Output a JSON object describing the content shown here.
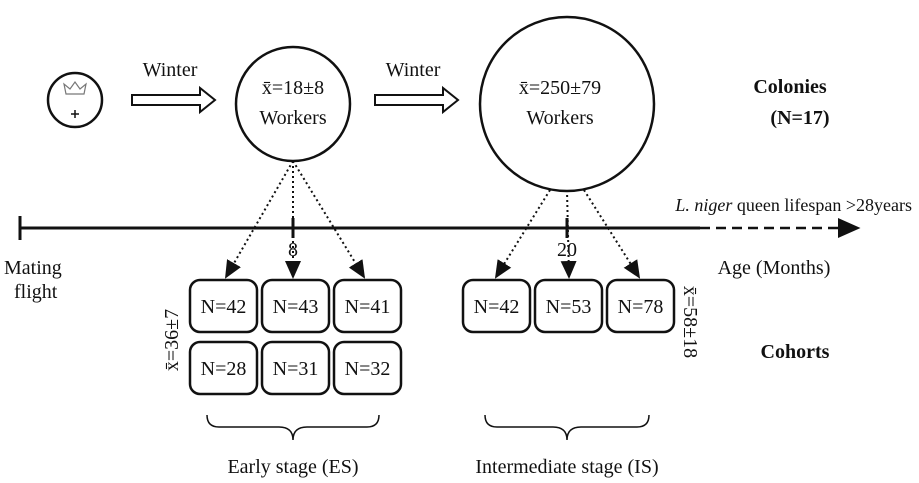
{
  "arrows": [
    "Winter",
    "Winter"
  ],
  "nodes": [
    {
      "mean": "x̄=18±8",
      "label": "Workers"
    },
    {
      "mean": "x̄=250±79",
      "label": "Workers"
    }
  ],
  "colonies": {
    "label": "Colonies",
    "count": "(N=17)"
  },
  "timeline": {
    "species": "L. niger",
    "lifespan": "queen lifespan >28years",
    "start": [
      "Mating",
      "flight"
    ],
    "ticks": [
      "8",
      "20"
    ],
    "axis_label": "Age (Months)"
  },
  "cohorts": {
    "label": "Cohorts",
    "groups": [
      {
        "mean": "x̄=36±7",
        "rows": [
          [
            "N=42",
            "N=43",
            "N=41"
          ],
          [
            "N=28",
            "N=31",
            "N=32"
          ]
        ],
        "label": "Early stage (ES)"
      },
      {
        "mean": "x̄=58±18",
        "rows": [
          [
            "N=42",
            "N=53",
            "N=78"
          ]
        ],
        "label": "Intermediate stage (IS)"
      }
    ]
  }
}
